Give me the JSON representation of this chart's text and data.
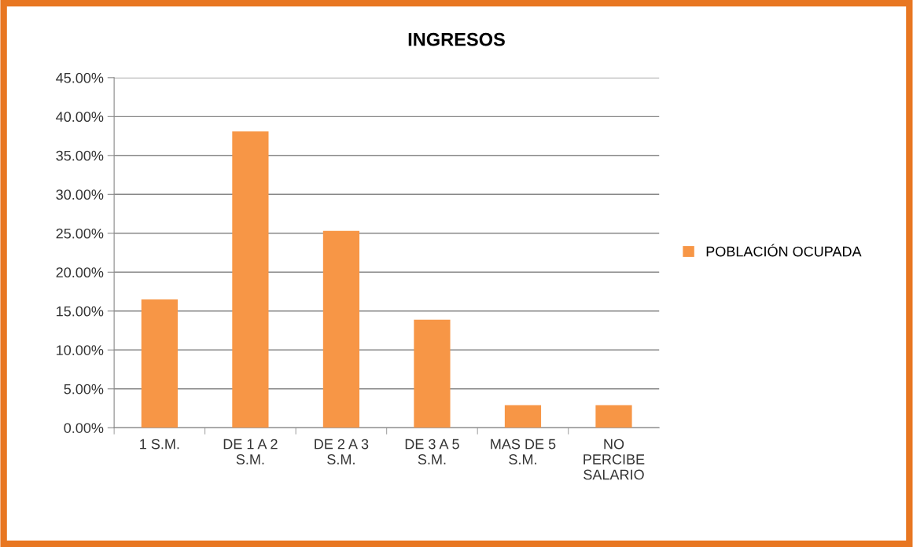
{
  "chart_data": {
    "type": "bar",
    "title": "INGRESOS",
    "categories": [
      "1 S.M.",
      "DE 1 A 2\nS.M.",
      "DE 2 A 3\nS.M.",
      "DE 3 A 5\nS.M.",
      "MAS DE 5\nS.M.",
      "NO\nPERCIBE\nSALARIO"
    ],
    "series": [
      {
        "name": "POBLACIÓN OCUPADA",
        "color": "#f79646",
        "values": [
          16.5,
          38.1,
          25.3,
          13.9,
          2.9,
          2.9
        ]
      }
    ],
    "ylim": [
      0,
      45
    ],
    "yticks": [
      {
        "value": 0,
        "label": "0.00%"
      },
      {
        "value": 5,
        "label": "5.00%"
      },
      {
        "value": 10,
        "label": "10.00%"
      },
      {
        "value": 15,
        "label": "15.00%"
      },
      {
        "value": 20,
        "label": "20.00%"
      },
      {
        "value": 25,
        "label": "25.00%"
      },
      {
        "value": 30,
        "label": "30.00%"
      },
      {
        "value": 35,
        "label": "35.00%"
      },
      {
        "value": 40,
        "label": "40.00%"
      },
      {
        "value": 45,
        "label": "45.00%"
      }
    ],
    "grid": "y",
    "legend": "right"
  }
}
